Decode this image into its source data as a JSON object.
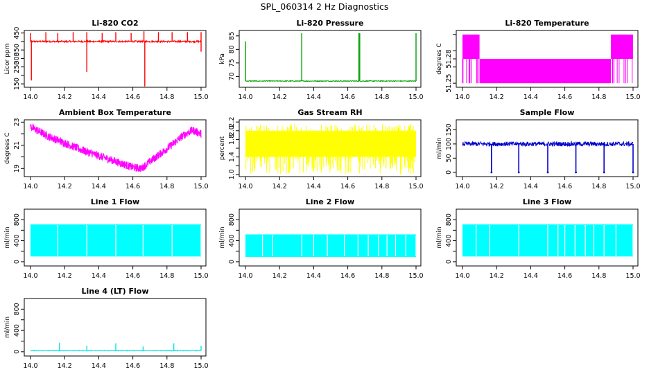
{
  "figure_title": "SPL_060314  2 Hz Diagnostics",
  "chart_data": [
    {
      "type": "line",
      "title": "Li-820 CO2",
      "ylabel": "Licor ppm",
      "color": "#ff0000",
      "xlim": [
        14.0,
        15.0
      ],
      "ylim": [
        130,
        465
      ],
      "xticks": [
        14.0,
        14.2,
        14.4,
        14.6,
        14.8,
        15.0
      ],
      "yticks": [
        150,
        200,
        250,
        300,
        350,
        400,
        450
      ],
      "yticklabels": [
        "150",
        "",
        "250",
        "300",
        "350",
        "",
        "450"
      ],
      "series": [
        {
          "baseline": 400,
          "noise": 5,
          "spikes": [
            [
              14.0,
              450
            ],
            [
              14.005,
              170
            ],
            [
              14.09,
              455
            ],
            [
              14.16,
              450
            ],
            [
              14.25,
              455
            ],
            [
              14.33,
              455
            ],
            [
              14.33,
              220
            ],
            [
              14.42,
              450
            ],
            [
              14.5,
              455
            ],
            [
              14.59,
              450
            ],
            [
              14.665,
              460
            ],
            [
              14.67,
              135
            ],
            [
              14.75,
              455
            ],
            [
              14.83,
              455
            ],
            [
              14.92,
              455
            ],
            [
              15.0,
              455
            ],
            [
              15.0,
              340
            ]
          ]
        }
      ]
    },
    {
      "type": "line",
      "title": "Li-820 Pressure",
      "ylabel": "kPa",
      "color": "#00a000",
      "xlim": [
        14.0,
        15.0
      ],
      "ylim": [
        66,
        87
      ],
      "xticks": [
        14.0,
        14.2,
        14.4,
        14.6,
        14.8,
        15.0
      ],
      "yticks": [
        70,
        75,
        80,
        85
      ],
      "yticklabels": [
        "70",
        "75",
        "80",
        "85"
      ],
      "series": [
        {
          "baseline": 68.3,
          "noise": 0.15,
          "spikes": [
            [
              14.0,
              83
            ],
            [
              14.33,
              86
            ],
            [
              14.665,
              86
            ],
            [
              14.67,
              86
            ],
            [
              15.0,
              86
            ]
          ]
        }
      ]
    },
    {
      "type": "line",
      "title": "Li-820 Temperature",
      "ylabel": "degrees C",
      "color": "#ff00ff",
      "xlim": [
        14.0,
        15.0
      ],
      "ylim": [
        51.245,
        51.315
      ],
      "xticks": [
        14.0,
        14.2,
        14.4,
        14.6,
        14.8,
        15.0
      ],
      "yticks": [
        51.25,
        51.27,
        51.28,
        51.29,
        51.31
      ],
      "yticklabels": [
        "51.25",
        "",
        "51.28",
        "",
        ""
      ],
      "levels": [
        51.25,
        51.28,
        51.31
      ],
      "segments": [
        [
          14.0,
          14.1,
          "high"
        ],
        [
          14.1,
          14.87,
          "mid"
        ],
        [
          14.87,
          15.0,
          "high"
        ]
      ]
    },
    {
      "type": "line",
      "title": "Ambient Box Temperature",
      "ylabel": "degrees C",
      "color": "#ff00ff",
      "xlim": [
        14.0,
        15.0
      ],
      "ylim": [
        18.3,
        23.2
      ],
      "xticks": [
        14.0,
        14.2,
        14.4,
        14.6,
        14.8,
        15.0
      ],
      "yticks": [
        19,
        20,
        21,
        22,
        23
      ],
      "yticklabels": [
        "19",
        "",
        "21",
        "",
        "23"
      ],
      "trend": [
        [
          14.0,
          22.6
        ],
        [
          14.1,
          21.8
        ],
        [
          14.2,
          21.2
        ],
        [
          14.3,
          20.6
        ],
        [
          14.4,
          20.1
        ],
        [
          14.5,
          19.6
        ],
        [
          14.6,
          19.1
        ],
        [
          14.65,
          19.0
        ],
        [
          14.7,
          19.6
        ],
        [
          14.8,
          20.7
        ],
        [
          14.9,
          21.9
        ],
        [
          14.95,
          22.3
        ],
        [
          15.0,
          22.0
        ]
      ],
      "noise": 0.35
    },
    {
      "type": "area",
      "title": "Gas Stream RH",
      "ylabel": "percent",
      "color": "#ffff00",
      "xlim": [
        14.0,
        15.0
      ],
      "ylim": [
        0.95,
        2.25
      ],
      "xticks": [
        14.0,
        14.2,
        14.4,
        14.6,
        14.8,
        15.0
      ],
      "yticks": [
        1.0,
        1.2,
        1.4,
        1.6,
        1.8,
        2.0,
        2.2
      ],
      "yticklabels": [
        "1.0",
        "",
        "1.4",
        "",
        "1.8",
        "2.0",
        "2.2"
      ],
      "band": [
        1.4,
        2.0
      ],
      "min": 1.0,
      "max": 2.15
    },
    {
      "type": "line",
      "title": "Sample Flow",
      "ylabel": "ml/min",
      "color": "#0000cc",
      "xlim": [
        14.0,
        15.0
      ],
      "ylim": [
        -15,
        185
      ],
      "xticks": [
        14.0,
        14.2,
        14.4,
        14.6,
        14.8,
        15.0
      ],
      "yticks": [
        0,
        50,
        100,
        150
      ],
      "yticklabels": [
        "0",
        "50",
        "100",
        "150"
      ],
      "series": [
        {
          "baseline": 100,
          "noise": 8,
          "dips": [
            14.17,
            14.33,
            14.5,
            14.665,
            14.83,
            15.0
          ],
          "dip_value": 0
        }
      ]
    },
    {
      "type": "area",
      "title": "Line 1 Flow",
      "ylabel": "ml/min",
      "color": "#00ffff",
      "xlim": [
        14.0,
        15.0
      ],
      "ylim": [
        -80,
        1000
      ],
      "xticks": [
        14.0,
        14.2,
        14.4,
        14.6,
        14.8,
        15.0
      ],
      "yticks": [
        0,
        200,
        400,
        600,
        800
      ],
      "yticklabels": [
        "0",
        "",
        "400",
        "",
        "800"
      ],
      "band": [
        100,
        710
      ],
      "gaps": [
        14.16,
        14.33,
        14.5,
        14.66,
        14.83,
        15.0
      ]
    },
    {
      "type": "area",
      "title": "Line 2 Flow",
      "ylabel": "ml/min",
      "color": "#00ffff",
      "xlim": [
        14.0,
        15.0
      ],
      "ylim": [
        -80,
        1000
      ],
      "xticks": [
        14.0,
        14.2,
        14.4,
        14.6,
        14.8,
        15.0
      ],
      "yticks": [
        0,
        200,
        400,
        600,
        800
      ],
      "yticklabels": [
        "0",
        "",
        "400",
        "",
        "800"
      ],
      "band": [
        90,
        520
      ],
      "gaps": [
        14.1,
        14.16,
        14.33,
        14.4,
        14.48,
        14.58,
        14.66,
        14.72,
        14.78,
        14.83,
        14.88,
        14.94,
        15.0
      ]
    },
    {
      "type": "area",
      "title": "Line 3 Flow",
      "ylabel": "ml/min",
      "color": "#00ffff",
      "xlim": [
        14.0,
        15.0
      ],
      "ylim": [
        -80,
        1000
      ],
      "xticks": [
        14.0,
        14.2,
        14.4,
        14.6,
        14.8,
        15.0
      ],
      "yticks": [
        0,
        200,
        400,
        600,
        800
      ],
      "yticklabels": [
        "0",
        "",
        "400",
        "",
        "800"
      ],
      "band": [
        100,
        710
      ],
      "gaps": [
        14.08,
        14.16,
        14.33,
        14.5,
        14.56,
        14.6,
        14.66,
        14.72,
        14.77,
        14.83,
        14.9,
        15.0
      ]
    },
    {
      "type": "line",
      "title": "Line 4 (LT) Flow",
      "ylabel": "ml/min",
      "color": "#00e5e5",
      "xlim": [
        14.0,
        15.0
      ],
      "ylim": [
        -80,
        1000
      ],
      "xticks": [
        14.0,
        14.2,
        14.4,
        14.6,
        14.8,
        15.0
      ],
      "yticks": [
        0,
        200,
        400,
        600,
        800
      ],
      "yticklabels": [
        "0",
        "",
        "400",
        "",
        "800"
      ],
      "series": [
        {
          "baseline": 20,
          "noise": 6,
          "spikes": [
            [
              14.17,
              170
            ],
            [
              14.33,
              110
            ],
            [
              14.5,
              160
            ],
            [
              14.66,
              100
            ],
            [
              14.84,
              160
            ],
            [
              15.0,
              110
            ]
          ]
        }
      ]
    }
  ]
}
